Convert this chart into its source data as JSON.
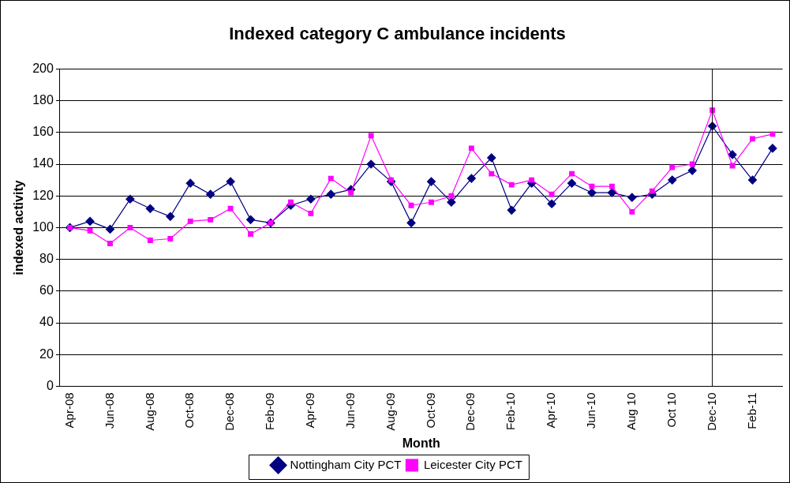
{
  "chart_data": {
    "type": "line",
    "title": "Indexed category C ambulance incidents",
    "xlabel": "Month",
    "ylabel": "indexed activity",
    "categories": [
      "Apr-08",
      null,
      "Jun-08",
      null,
      "Aug-08",
      null,
      "Oct-08",
      null,
      "Dec-08",
      null,
      "Feb-09",
      null,
      "Apr-09",
      null,
      "Jun-09",
      null,
      "Aug-09",
      null,
      "Oct-09",
      null,
      "Dec-09",
      null,
      "Feb-10",
      null,
      "Apr-10",
      null,
      "Jun-10",
      null,
      "Aug 10",
      null,
      "Oct 10",
      null,
      "Dec-10",
      null,
      "Feb-11",
      null
    ],
    "series": [
      {
        "name": "Nottingham City PCT",
        "color": "#000080",
        "marker": "diamond",
        "values": [
          100,
          104,
          99,
          118,
          112,
          107,
          128,
          121,
          129,
          105,
          103,
          114,
          118,
          121,
          124,
          140,
          129,
          103,
          129,
          116,
          131,
          144,
          111,
          128,
          115,
          128,
          122,
          122,
          119,
          121,
          130,
          136,
          164,
          146,
          130,
          150
        ]
      },
      {
        "name": "Leicester City PCT",
        "color": "#ff00ff",
        "marker": "square",
        "values": [
          100,
          98,
          90,
          100,
          92,
          93,
          104,
          105,
          112,
          96,
          103,
          116,
          109,
          131,
          122,
          158,
          130,
          114,
          116,
          120,
          150,
          134,
          127,
          130,
          121,
          134,
          126,
          126,
          110,
          123,
          138,
          140,
          174,
          139,
          156,
          159
        ]
      }
    ],
    "ylim": [
      0,
      200
    ],
    "yticks": [
      0,
      20,
      40,
      60,
      80,
      100,
      120,
      140,
      160,
      180,
      200
    ],
    "grid": "y",
    "legend": "bottom",
    "ref_lines": [
      {
        "axis": "x",
        "value": "Dec-10",
        "color": "#000000"
      }
    ]
  }
}
